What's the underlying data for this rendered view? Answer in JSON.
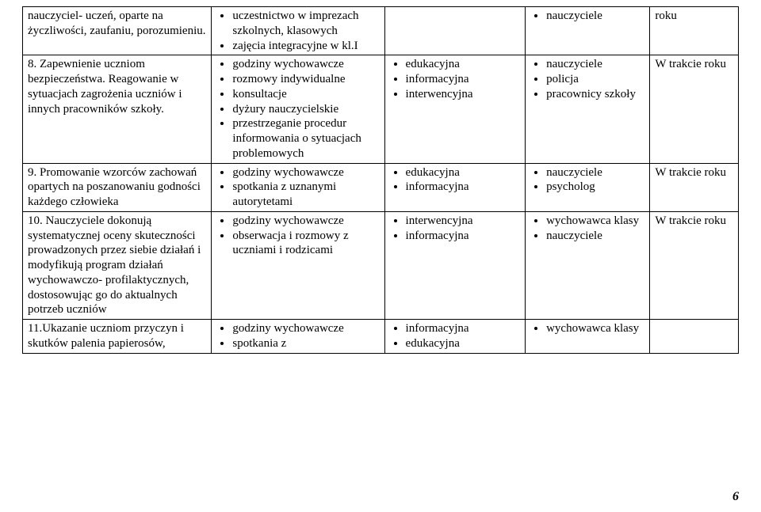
{
  "rows": [
    {
      "left_text": "nauczyciel- uczeń, oparte na życzliwości, zaufaniu, porozumieniu.",
      "col2_items": [
        "uczestnictwo w imprezach szkolnych, klasowych",
        "zajęcia integracyjne w kl.I"
      ],
      "col3_items": [],
      "col4_items": [
        "nauczyciele"
      ],
      "col5_text": "roku"
    },
    {
      "left_text": "8. Zapewnienie uczniom bezpieczeństwa. Reagowanie w sytuacjach zagrożenia uczniów i innych pracowników szkoły.",
      "col2_items": [
        "godziny wychowawcze",
        "rozmowy indywidualne",
        "konsultacje",
        "dyżury nauczycielskie",
        "przestrzeganie procedur informowania o sytuacjach problemowych"
      ],
      "col3_items": [
        "edukacyjna",
        "informacyjna",
        "interwencyjna"
      ],
      "col4_items": [
        "nauczyciele",
        "policja",
        "pracownicy szkoły"
      ],
      "col5_text": "W trakcie roku"
    },
    {
      "left_text": "9. Promowanie wzorców zachowań opartych na poszanowaniu godności każdego człowieka",
      "col2_items": [
        "godziny wychowawcze",
        "spotkania z uznanymi autorytetami"
      ],
      "col3_items": [
        "edukacyjna",
        "informacyjna"
      ],
      "col4_items": [
        "nauczyciele",
        "psycholog"
      ],
      "col5_text": "W trakcie roku"
    },
    {
      "left_text": "10. Nauczyciele dokonują systematycznej oceny skuteczności prowadzonych przez siebie działań i modyfikują program działań wychowawczo- profilaktycznych, dostosowując go do aktualnych potrzeb uczniów",
      "col2_items": [
        "godziny wychowawcze",
        "obserwacja i rozmowy z uczniami i rodzicami"
      ],
      "col3_items": [
        "interwencyjna",
        "informacyjna"
      ],
      "col4_items": [
        "wychowawca klasy",
        "nauczyciele"
      ],
      "col5_text": "W trakcie roku"
    },
    {
      "left_text": "11.Ukazanie uczniom przyczyn i skutków palenia papierosów,",
      "col2_items": [
        "godziny wychowawcze",
        "spotkania z"
      ],
      "col3_items": [
        "informacyjna",
        "edukacyjna"
      ],
      "col4_items": [
        "wychowawca klasy"
      ],
      "col5_text": ""
    }
  ],
  "page_number": "6",
  "colors": {
    "text": "#000000",
    "background": "#ffffff",
    "border": "#000000"
  },
  "font": {
    "family": "Times New Roman",
    "size_pt": 12
  }
}
